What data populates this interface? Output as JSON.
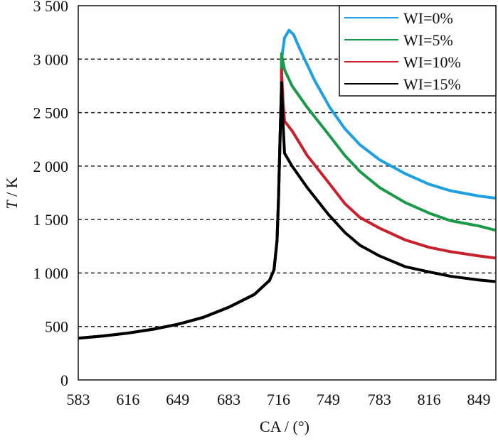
{
  "chart_data": {
    "type": "line",
    "title": "",
    "xlabel": "CA / (°)",
    "ylabel_italic": "T",
    "ylabel_rest": " / K",
    "xlim": [
      583,
      862
    ],
    "ylim": [
      0,
      3500
    ],
    "x_ticks": [
      583,
      616,
      649,
      683,
      716,
      749,
      783,
      816,
      849
    ],
    "y_ticks": [
      0,
      500,
      1000,
      1500,
      2000,
      2500,
      3000,
      3500
    ],
    "y_tick_labels": [
      "0",
      "500",
      "1 000",
      "1 500",
      "2 000",
      "2 500",
      "3 000",
      "3 500"
    ],
    "grid": "horizontal dashed",
    "legend_position": "top-right",
    "common_segment": [
      [
        583,
        390
      ],
      [
        600,
        412
      ],
      [
        616,
        438
      ],
      [
        633,
        475
      ],
      [
        649,
        520
      ],
      [
        666,
        585
      ],
      [
        683,
        680
      ],
      [
        700,
        800
      ],
      [
        710,
        930
      ],
      [
        713,
        1030
      ],
      [
        715,
        1300
      ],
      [
        716,
        1700
      ],
      [
        717,
        2250
      ],
      [
        718,
        2750
      ]
    ],
    "series": [
      {
        "name": "WI=0%",
        "color": "#1fa0e0",
        "points": [
          [
            718,
            3000
          ],
          [
            720,
            3200
          ],
          [
            723,
            3270
          ],
          [
            726,
            3230
          ],
          [
            730,
            3100
          ],
          [
            740,
            2800
          ],
          [
            750,
            2550
          ],
          [
            760,
            2350
          ],
          [
            770,
            2200
          ],
          [
            783,
            2060
          ],
          [
            800,
            1930
          ],
          [
            816,
            1830
          ],
          [
            830,
            1770
          ],
          [
            849,
            1720
          ],
          [
            860,
            1700
          ]
        ]
      },
      {
        "name": "WI=5%",
        "color": "#1a9a48",
        "points": [
          [
            718,
            3050
          ],
          [
            720,
            2900
          ],
          [
            725,
            2750
          ],
          [
            735,
            2550
          ],
          [
            749,
            2300
          ],
          [
            760,
            2100
          ],
          [
            770,
            1950
          ],
          [
            783,
            1800
          ],
          [
            800,
            1660
          ],
          [
            816,
            1560
          ],
          [
            830,
            1490
          ],
          [
            849,
            1440
          ],
          [
            860,
            1400
          ]
        ]
      },
      {
        "name": "WI=10%",
        "color": "#c8202c",
        "points": [
          [
            718,
            2900
          ],
          [
            719,
            2600
          ],
          [
            720,
            2420
          ],
          [
            725,
            2330
          ],
          [
            735,
            2100
          ],
          [
            749,
            1850
          ],
          [
            760,
            1650
          ],
          [
            770,
            1520
          ],
          [
            783,
            1420
          ],
          [
            800,
            1310
          ],
          [
            816,
            1240
          ],
          [
            830,
            1200
          ],
          [
            849,
            1160
          ],
          [
            860,
            1140
          ]
        ]
      },
      {
        "name": "WI=15%",
        "color": "#000000",
        "points": [
          [
            718,
            2780
          ],
          [
            719,
            2400
          ],
          [
            720,
            2120
          ],
          [
            725,
            2000
          ],
          [
            735,
            1800
          ],
          [
            749,
            1550
          ],
          [
            760,
            1380
          ],
          [
            770,
            1260
          ],
          [
            783,
            1160
          ],
          [
            800,
            1060
          ],
          [
            816,
            1010
          ],
          [
            830,
            970
          ],
          [
            849,
            935
          ],
          [
            860,
            920
          ]
        ]
      }
    ]
  }
}
